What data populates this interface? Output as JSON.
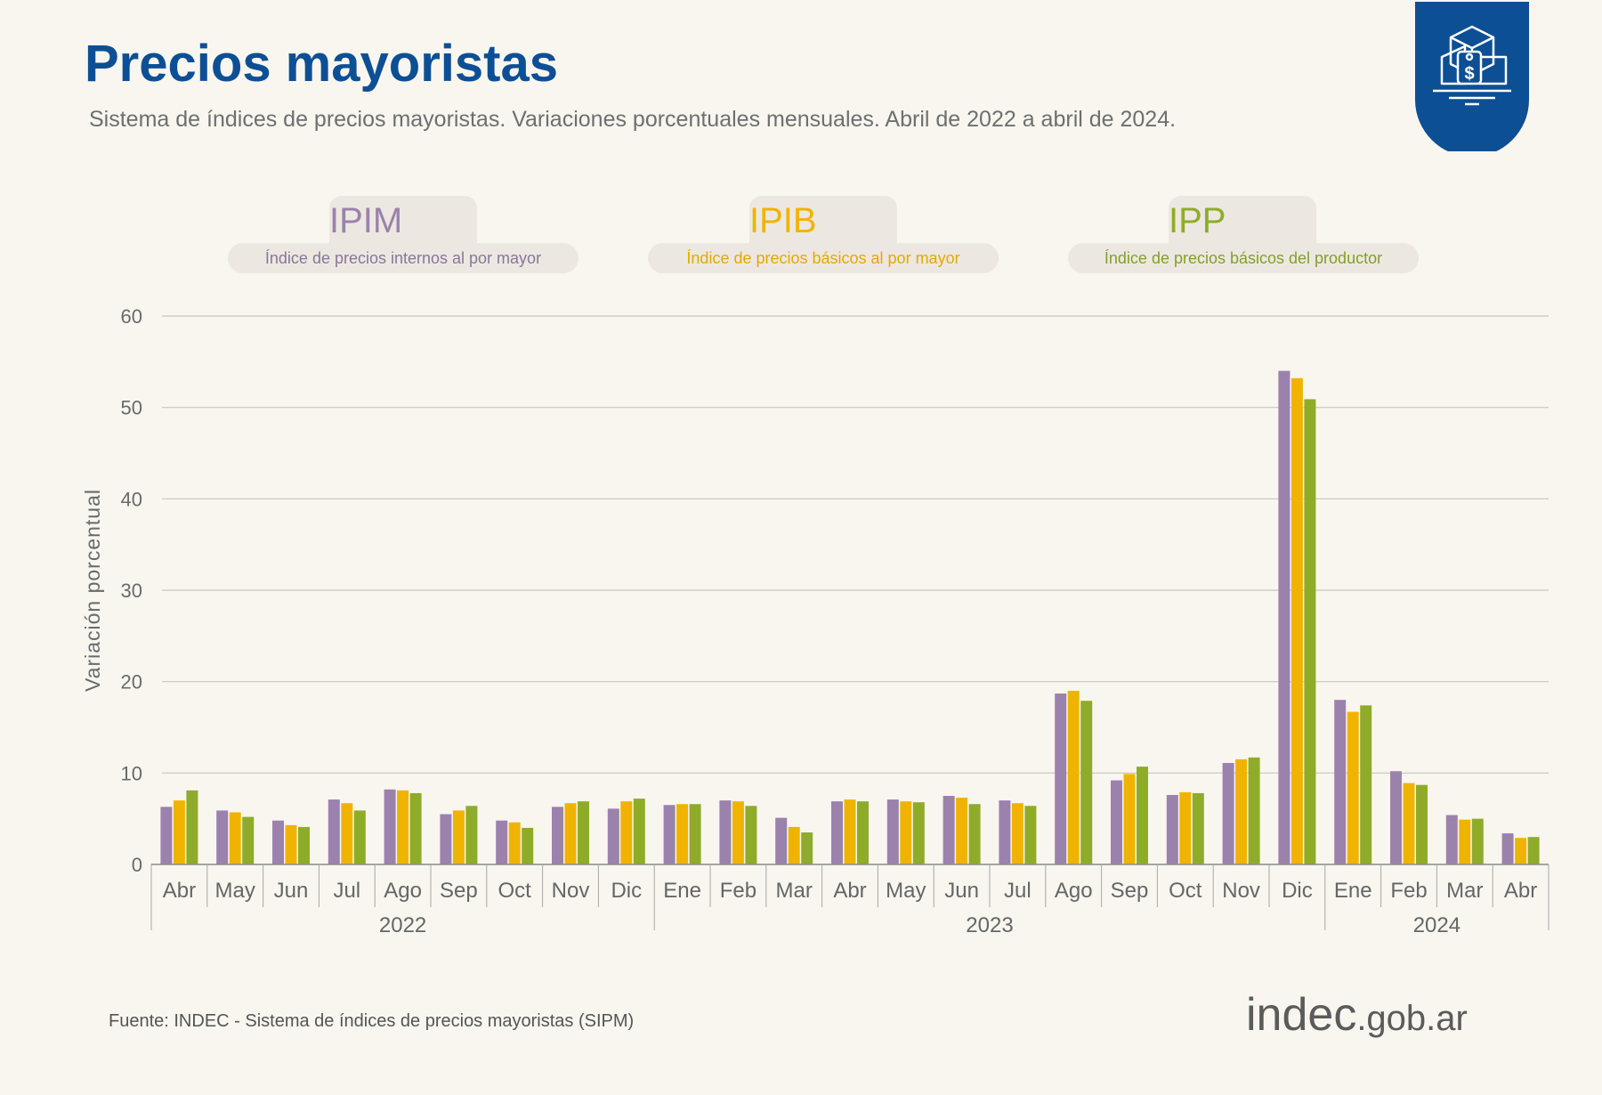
{
  "header": {
    "title": "Precios mayoristas",
    "subtitle": "Sistema de índices de precios mayoristas. Variaciones porcentuales mensuales. Abril de 2022 a abril de 2024."
  },
  "legend": [
    {
      "code": "IPIM",
      "description": "Índice de precios internos al por mayor",
      "color": "#9b82ad"
    },
    {
      "code": "IPIB",
      "description": "Índice de precios básicos al por mayor",
      "color": "#f0b400"
    },
    {
      "code": "IPP",
      "description": "Índice de precios básicos del productor",
      "color": "#8eac2a"
    }
  ],
  "chart_data": {
    "type": "bar",
    "ylabel": "Variación porcentual",
    "ylim": [
      0,
      60
    ],
    "yticks": [
      0,
      10,
      20,
      30,
      40,
      50,
      60
    ],
    "grid": true,
    "categories": [
      "Abr",
      "May",
      "Jun",
      "Jul",
      "Ago",
      "Sep",
      "Oct",
      "Nov",
      "Dic",
      "Ene",
      "Feb",
      "Mar",
      "Abr",
      "May",
      "Jun",
      "Jul",
      "Ago",
      "Sep",
      "Oct",
      "Nov",
      "Dic",
      "Ene",
      "Feb",
      "Mar",
      "Abr"
    ],
    "years": [
      {
        "label": "2022",
        "start": 0,
        "end": 8
      },
      {
        "label": "2023",
        "start": 9,
        "end": 20
      },
      {
        "label": "2024",
        "start": 21,
        "end": 24
      }
    ],
    "series": [
      {
        "name": "IPIM",
        "color": "#9b82ad",
        "values": [
          6.3,
          5.9,
          4.8,
          7.1,
          8.2,
          5.5,
          4.8,
          6.3,
          6.1,
          6.5,
          7.0,
          5.1,
          6.9,
          7.1,
          7.5,
          7.0,
          18.7,
          9.2,
          7.6,
          11.1,
          54.0,
          18.0,
          10.2,
          5.4,
          3.4
        ]
      },
      {
        "name": "IPIB",
        "color": "#f0b400",
        "values": [
          7.0,
          5.7,
          4.3,
          6.7,
          8.1,
          5.9,
          4.6,
          6.7,
          6.9,
          6.6,
          6.9,
          4.1,
          7.1,
          6.9,
          7.3,
          6.7,
          19.0,
          9.9,
          7.9,
          11.5,
          53.2,
          16.7,
          8.9,
          4.9,
          2.9
        ]
      },
      {
        "name": "IPP",
        "color": "#8eac2a",
        "values": [
          8.1,
          5.2,
          4.1,
          5.9,
          7.8,
          6.4,
          4.0,
          6.9,
          7.2,
          6.6,
          6.4,
          3.5,
          6.9,
          6.8,
          6.6,
          6.4,
          17.9,
          10.7,
          7.8,
          11.7,
          50.9,
          17.4,
          8.7,
          5.0,
          3.0
        ]
      }
    ]
  },
  "footer": {
    "source": "Fuente: INDEC - Sistema de índices de precios mayoristas (SIPM)",
    "logo_main": "indec",
    "logo_suffix": ".gob.ar"
  }
}
